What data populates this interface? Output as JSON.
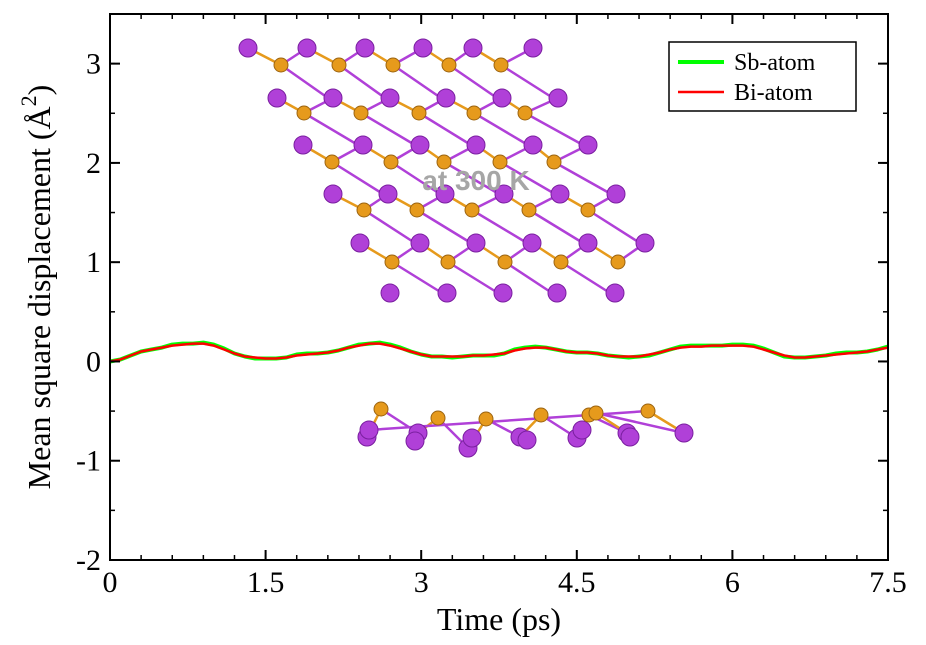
{
  "chart_data": {
    "type": "line",
    "title": "",
    "xlabel": "Time (ps)",
    "ylabel_prefix": "Mean square displacement (",
    "ylabel_unit": "Å",
    "ylabel_exp": "2",
    "ylabel_suffix": ")",
    "xlim": [
      0,
      7.5
    ],
    "ylim": [
      -2,
      3.5
    ],
    "x_ticks": [
      0,
      1.5,
      3,
      4.5,
      6,
      7.5
    ],
    "x_tick_labels": [
      "0",
      "1.5",
      "3",
      "4.5",
      "6",
      "7.5"
    ],
    "y_ticks": [
      -2,
      -1,
      0,
      1,
      2,
      3
    ],
    "y_tick_labels": [
      "-2",
      "-1",
      "0",
      "1",
      "2",
      "3"
    ],
    "annotation": "at 300 K",
    "legend": {
      "position": "top-right"
    },
    "series": [
      {
        "name": "Sb-atom",
        "color": "#00ff00",
        "x": [
          0,
          0.1,
          0.2,
          0.3,
          0.4,
          0.5,
          0.6,
          0.7,
          0.8,
          0.9,
          1.0,
          1.1,
          1.2,
          1.3,
          1.4,
          1.5,
          1.6,
          1.7,
          1.8,
          1.9,
          2.0,
          2.1,
          2.2,
          2.3,
          2.4,
          2.5,
          2.6,
          2.7,
          2.8,
          2.9,
          3.0,
          3.1,
          3.2,
          3.3,
          3.4,
          3.5,
          3.6,
          3.7,
          3.8,
          3.9,
          4.0,
          4.1,
          4.2,
          4.3,
          4.4,
          4.5,
          4.6,
          4.7,
          4.8,
          4.9,
          5.0,
          5.1,
          5.2,
          5.3,
          5.4,
          5.5,
          5.6,
          5.7,
          5.8,
          5.9,
          6.0,
          6.1,
          6.2,
          6.3,
          6.4,
          6.5,
          6.6,
          6.7,
          6.8,
          6.9,
          7.0,
          7.1,
          7.2,
          7.3,
          7.4,
          7.5
        ],
        "values": [
          0.0,
          0.02,
          0.06,
          0.1,
          0.12,
          0.14,
          0.17,
          0.18,
          0.18,
          0.19,
          0.17,
          0.13,
          0.08,
          0.05,
          0.03,
          0.03,
          0.03,
          0.04,
          0.07,
          0.08,
          0.08,
          0.09,
          0.11,
          0.14,
          0.17,
          0.18,
          0.19,
          0.17,
          0.14,
          0.1,
          0.07,
          0.05,
          0.05,
          0.04,
          0.05,
          0.06,
          0.06,
          0.06,
          0.08,
          0.12,
          0.14,
          0.15,
          0.14,
          0.12,
          0.1,
          0.09,
          0.09,
          0.08,
          0.06,
          0.05,
          0.04,
          0.05,
          0.06,
          0.09,
          0.12,
          0.15,
          0.16,
          0.16,
          0.16,
          0.16,
          0.17,
          0.17,
          0.16,
          0.13,
          0.09,
          0.05,
          0.04,
          0.04,
          0.05,
          0.06,
          0.08,
          0.09,
          0.09,
          0.1,
          0.12,
          0.15
        ]
      },
      {
        "name": "Bi-atom",
        "color": "#ff0000",
        "x": [
          0,
          0.1,
          0.2,
          0.3,
          0.4,
          0.5,
          0.6,
          0.7,
          0.8,
          0.9,
          1.0,
          1.1,
          1.2,
          1.3,
          1.4,
          1.5,
          1.6,
          1.7,
          1.8,
          1.9,
          2.0,
          2.1,
          2.2,
          2.3,
          2.4,
          2.5,
          2.6,
          2.7,
          2.8,
          2.9,
          3.0,
          3.1,
          3.2,
          3.3,
          3.4,
          3.5,
          3.6,
          3.7,
          3.8,
          3.9,
          4.0,
          4.1,
          4.2,
          4.3,
          4.4,
          4.5,
          4.6,
          4.7,
          4.8,
          4.9,
          5.0,
          5.1,
          5.2,
          5.3,
          5.4,
          5.5,
          5.6,
          5.7,
          5.8,
          5.9,
          6.0,
          6.1,
          6.2,
          6.3,
          6.4,
          6.5,
          6.6,
          6.7,
          6.8,
          6.9,
          7.0,
          7.1,
          7.2,
          7.3,
          7.4,
          7.5
        ],
        "values": [
          0.0,
          0.02,
          0.06,
          0.1,
          0.12,
          0.14,
          0.16,
          0.17,
          0.18,
          0.18,
          0.16,
          0.12,
          0.08,
          0.05,
          0.04,
          0.03,
          0.03,
          0.04,
          0.06,
          0.07,
          0.08,
          0.09,
          0.11,
          0.14,
          0.16,
          0.18,
          0.18,
          0.16,
          0.13,
          0.1,
          0.07,
          0.05,
          0.05,
          0.05,
          0.05,
          0.06,
          0.06,
          0.07,
          0.08,
          0.11,
          0.13,
          0.14,
          0.14,
          0.12,
          0.1,
          0.09,
          0.09,
          0.08,
          0.06,
          0.05,
          0.05,
          0.05,
          0.07,
          0.09,
          0.12,
          0.14,
          0.15,
          0.15,
          0.16,
          0.16,
          0.16,
          0.16,
          0.15,
          0.12,
          0.09,
          0.06,
          0.04,
          0.04,
          0.05,
          0.06,
          0.07,
          0.08,
          0.09,
          0.1,
          0.12,
          0.14
        ]
      }
    ]
  },
  "colors": {
    "antimony": "#e69a1c",
    "bismuth": "#b040d8"
  }
}
